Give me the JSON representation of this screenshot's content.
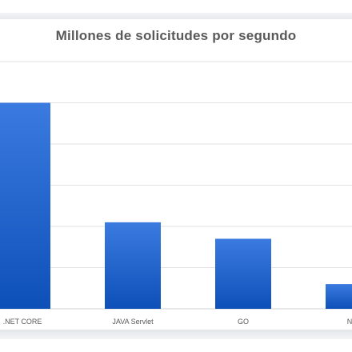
{
  "chart_data": {
    "type": "bar",
    "title": "Millones de solicitudes por segundo",
    "xlabel": "",
    "ylabel": "",
    "categories": [
      ".NET CORE",
      "JAVA Servlet",
      "GO",
      "Nod"
    ],
    "values": [
      5.0,
      2.1,
      1.7,
      0.6
    ],
    "ylim": [
      0,
      6
    ],
    "grid": true,
    "legend": "none",
    "bar_color_top": "#3b7be0",
    "bar_color_bottom": "#0d50b8",
    "grid_color": "#d9d9d9"
  }
}
